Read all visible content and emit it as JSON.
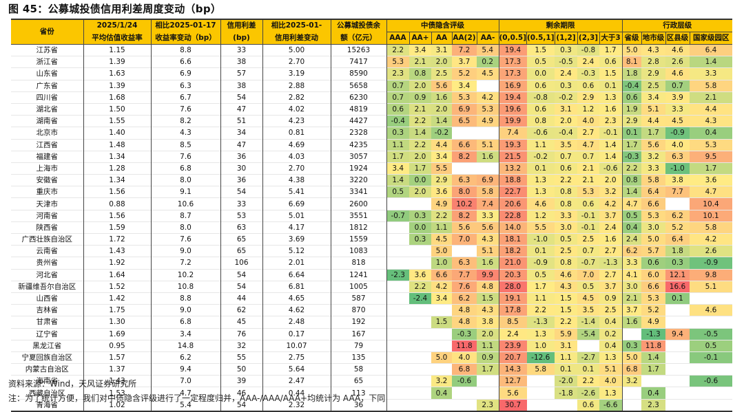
{
  "title": "图 45：公募城投债信用利差周度变动（bp）",
  "headers": {
    "province": "省份",
    "yield": [
      "2025/1/24",
      "平均估值收益率"
    ],
    "yield_change": [
      "相比2025-01-17",
      "收益率变动（bp）"
    ],
    "spread": [
      "信用利差",
      "(bp)"
    ],
    "spread_change": [
      "相比2025-01-",
      "信用利差变动"
    ],
    "balance": [
      "公募城投债余",
      "额（亿元）"
    ],
    "group_rating": "中债隐含评级",
    "group_term": "剩余期限",
    "group_admin": "行政层级",
    "rating_cols": [
      "AAA",
      "AA+",
      "AA",
      "AA(2)",
      "AA-"
    ],
    "term_cols": [
      "(0,0.5]",
      "(0.5,1]",
      "(1,2]",
      "(2,3]",
      "大于3"
    ],
    "admin_cols": [
      "省级",
      "地市级",
      "区县级",
      "国家级园区"
    ]
  },
  "rows": [
    {
      "p": "江苏省",
      "y": "1.15",
      "yc": "8.8",
      "s": "33",
      "sc": "5.00",
      "b": "15263",
      "r": [
        "2.2",
        "3.4",
        "3.1",
        "7.2",
        "5.4"
      ],
      "t": [
        "19.4",
        "1.5",
        "0.3",
        "-0.8",
        "1.7"
      ],
      "a": [
        "5.0",
        "4.3",
        "4.6",
        "6.4"
      ]
    },
    {
      "p": "浙江省",
      "y": "1.39",
      "yc": "6.6",
      "s": "38",
      "sc": "2.70",
      "b": "7417",
      "r": [
        "5.3",
        "2.1",
        "2.0",
        "3.7",
        "0.2"
      ],
      "t": [
        "17.3",
        "0.5",
        "-0.5",
        "2.4",
        "0.6"
      ],
      "a": [
        "8.1",
        "2.8",
        "2.6",
        "1.4"
      ]
    },
    {
      "p": "山东省",
      "y": "1.63",
      "yc": "6.9",
      "s": "57",
      "sc": "3.19",
      "b": "8590",
      "r": [
        "2.3",
        "0.8",
        "2.5",
        "5.2",
        "4.5"
      ],
      "t": [
        "17.3",
        "0.0",
        "2.4",
        "-0.3",
        "1.5"
      ],
      "a": [
        "1.8",
        "2.9",
        "4.6",
        "3.3"
      ]
    },
    {
      "p": "广东省",
      "y": "1.39",
      "yc": "6.3",
      "s": "38",
      "sc": "2.88",
      "b": "5658",
      "r": [
        "0.7",
        "2.0",
        "5.6",
        "3.4",
        ""
      ],
      "t": [
        "16.9",
        "0.6",
        "0.3",
        "0.6",
        "0.1"
      ],
      "a": [
        "-0.4",
        "2.5",
        "0.7",
        "5.8"
      ]
    },
    {
      "p": "四川省",
      "y": "1.68",
      "yc": "6.7",
      "s": "54",
      "sc": "2.82",
      "b": "6230",
      "r": [
        "0.7",
        "0.9",
        "1.6",
        "5.3",
        "4.2"
      ],
      "t": [
        "19.4",
        "-0.8",
        "-0.2",
        "2.9",
        "1.3"
      ],
      "a": [
        "0.6",
        "3.4",
        "3.9",
        "2.1"
      ]
    },
    {
      "p": "湖北省",
      "y": "1.50",
      "yc": "7.6",
      "s": "47",
      "sc": "4.02",
      "b": "4819",
      "r": [
        "0.6",
        "2.1",
        "2.0",
        "6.9",
        "5.3"
      ],
      "t": [
        "19.6",
        "0.6",
        "3.1",
        "1.2",
        "1.6"
      ],
      "a": [
        "1.9",
        "5.1",
        "3.3",
        "4.4"
      ]
    },
    {
      "p": "湖南省",
      "y": "1.55",
      "yc": "8.2",
      "s": "51",
      "sc": "4.23",
      "b": "4427",
      "r": [
        "-0.4",
        "2.2",
        "1.4",
        "6.5",
        "4.9"
      ],
      "t": [
        "19.9",
        "0.8",
        "2.0",
        "4.0",
        "2.3"
      ],
      "a": [
        "2.9",
        "4.4",
        "4.5",
        "4.3"
      ]
    },
    {
      "p": "北京市",
      "y": "1.40",
      "yc": "4.3",
      "s": "34",
      "sc": "0.81",
      "b": "2328",
      "r": [
        "0.3",
        "1.4",
        "-0.2",
        "",
        ""
      ],
      "t": [
        "7.4",
        "-0.6",
        "-0.4",
        "2.7",
        "-0.1"
      ],
      "a": [
        "0.1",
        "1.7",
        "-0.9",
        "0.4"
      ]
    },
    {
      "p": "江西省",
      "y": "1.48",
      "yc": "8.5",
      "s": "47",
      "sc": "4.69",
      "b": "4235",
      "r": [
        "1.1",
        "2.2",
        "4.4",
        "6.6",
        "5.1"
      ],
      "t": [
        "19.3",
        "1.1",
        "3.5",
        "4.7",
        "1.4"
      ],
      "a": [
        "1.7",
        "5.6",
        "4.0",
        "5.3"
      ]
    },
    {
      "p": "福建省",
      "y": "1.34",
      "yc": "7.6",
      "s": "36",
      "sc": "4.03",
      "b": "3057",
      "r": [
        "1.7",
        "2.0",
        "3.4",
        "8.2",
        "1.6"
      ],
      "t": [
        "21.5",
        "-0.2",
        "0.7",
        "0.7",
        "1.4"
      ],
      "a": [
        "-0.3",
        "3.2",
        "6.3",
        "9.5"
      ]
    },
    {
      "p": "上海市",
      "y": "1.28",
      "yc": "6.8",
      "s": "30",
      "sc": "2.70",
      "b": "1924",
      "r": [
        "3.4",
        "1.7",
        "5.5",
        "",
        ""
      ],
      "t": [
        "13.2",
        "0.1",
        "0.6",
        "2.1",
        "-0.6"
      ],
      "a": [
        "2.2",
        "3.3",
        "-1.0",
        "1.7"
      ]
    },
    {
      "p": "安徽省",
      "y": "1.34",
      "yc": "8.0",
      "s": "36",
      "sc": "4.38",
      "b": "3220",
      "r": [
        "1.4",
        "0.0",
        "2.9",
        "6.3",
        "6.9"
      ],
      "t": [
        "18.8",
        "1.3",
        "2.2",
        "2.1",
        "2.0"
      ],
      "a": [
        "0.8",
        "5.8",
        "3.8",
        "3.6"
      ]
    },
    {
      "p": "重庆市",
      "y": "1.56",
      "yc": "9.1",
      "s": "54",
      "sc": "5.41",
      "b": "3341",
      "r": [
        "0.5",
        "2.0",
        "3.6",
        "8.0",
        "5.8"
      ],
      "t": [
        "22.7",
        "1.3",
        "0.8",
        "5.3",
        "3.2"
      ],
      "a": [
        "1.4",
        "6.4",
        "7.7",
        "4.7"
      ]
    },
    {
      "p": "天津市",
      "y": "0.88",
      "yc": "10.6",
      "s": "33",
      "sc": "6.69",
      "b": "2600",
      "r": [
        "",
        "",
        "4.9",
        "10.2",
        "7.4"
      ],
      "t": [
        "20.6",
        "4.6",
        "0.8",
        "0.6",
        "4.2"
      ],
      "a": [
        "4.7",
        "6.6",
        "",
        "10.4"
      ]
    },
    {
      "p": "河南省",
      "y": "1.56",
      "yc": "8.7",
      "s": "53",
      "sc": "5.01",
      "b": "3551",
      "r": [
        "-0.7",
        "0.3",
        "2.2",
        "8.2",
        "3.3"
      ],
      "t": [
        "22.8",
        "1.2",
        "3.3",
        "-0.1",
        "3.7"
      ],
      "a": [
        "0.5",
        "5.3",
        "6.2",
        "10.1"
      ]
    },
    {
      "p": "陕西省",
      "y": "1.59",
      "yc": "8.0",
      "s": "63",
      "sc": "4.17",
      "b": "1812",
      "r": [
        "",
        "0.0",
        "1.1",
        "5.6",
        "5.6"
      ],
      "t": [
        "14.0",
        "5.5",
        "3.0",
        "-0.1",
        "2.4"
      ],
      "a": [
        "0.4",
        "3.0",
        "5.2",
        "5.8"
      ]
    },
    {
      "p": "广西壮族自治区",
      "y": "1.72",
      "yc": "7.6",
      "s": "65",
      "sc": "3.69",
      "b": "1559",
      "r": [
        "",
        "0.3",
        "4.5",
        "7.0",
        "4.3"
      ],
      "t": [
        "18.1",
        "-1.0",
        "0.5",
        "2.5",
        "1.6"
      ],
      "a": [
        "2.4",
        "5.0",
        "6.4",
        "4.2"
      ]
    },
    {
      "p": "云南省",
      "y": "1.43",
      "yc": "9.0",
      "s": "65",
      "sc": "5.12",
      "b": "1083",
      "r": [
        "",
        "",
        "5.0",
        "",
        "5.1"
      ],
      "t": [
        "18.2",
        "0.1",
        "2.5",
        "0.7",
        "2.7"
      ],
      "a": [
        "6.2",
        "5.7",
        "1.8",
        "2.6"
      ]
    },
    {
      "p": "贵州省",
      "y": "1.92",
      "yc": "7.2",
      "s": "106",
      "sc": "2.01",
      "b": "818",
      "r": [
        "",
        "",
        "1.0",
        "6.3",
        "1.6"
      ],
      "t": [
        "21.0",
        "-0.9",
        "0.8",
        "-0.7",
        "-1.3"
      ],
      "a": [
        "3.3",
        "0.6",
        "0.3",
        "-0.9"
      ]
    },
    {
      "p": "河北省",
      "y": "1.64",
      "yc": "10.2",
      "s": "54",
      "sc": "6.64",
      "b": "1241",
      "r": [
        "-2.3",
        "3.6",
        "6.6",
        "7.7",
        "9.9"
      ],
      "t": [
        "20.3",
        "0.5",
        "4.6",
        "7.0",
        "2.7"
      ],
      "a": [
        "4.1",
        "6.0",
        "12.1",
        "9.8"
      ]
    },
    {
      "p": "新疆维吾尔自治区",
      "y": "1.52",
      "yc": "10.8",
      "s": "54",
      "sc": "6.81",
      "b": "1005",
      "r": [
        "",
        "2.2",
        "4.2",
        "7.6",
        "4.8"
      ],
      "t": [
        "28.0",
        "1.7",
        "4.3",
        "0.5",
        "3.7"
      ],
      "a": [
        "3.0",
        "6.6",
        "16.6",
        "5.1"
      ]
    },
    {
      "p": "山西省",
      "y": "1.42",
      "yc": "8.8",
      "s": "44",
      "sc": "4.65",
      "b": "587",
      "r": [
        "",
        "-2.4",
        "3.4",
        "6.2",
        "1.5"
      ],
      "t": [
        "19.1",
        "1.1",
        "1.5",
        "4.5",
        "0.9"
      ],
      "a": [
        "2.1",
        "5.3",
        "0.1",
        ""
      ]
    },
    {
      "p": "吉林省",
      "y": "1.75",
      "yc": "9.0",
      "s": "62",
      "sc": "4.62",
      "b": "870",
      "r": [
        "",
        "",
        "",
        "4.8",
        "4.3"
      ],
      "t": [
        "17.8",
        "2.2",
        "1.5",
        "3.5",
        "2.5"
      ],
      "a": [
        "3.7",
        "5.2",
        "",
        "4.6"
      ]
    },
    {
      "p": "甘肃省",
      "y": "1.30",
      "yc": "6.8",
      "s": "45",
      "sc": "2.48",
      "b": "192",
      "r": [
        "",
        "",
        "1.5",
        "4.8",
        "3.8"
      ],
      "t": [
        "8.5",
        "-1.3",
        "2.2",
        "-1.4",
        "0.4"
      ],
      "a": [
        "1.6",
        "4.9",
        "",
        ""
      ]
    },
    {
      "p": "辽宁省",
      "y": "1.69",
      "yc": "3.4",
      "s": "76",
      "sc": "0.17",
      "b": "167",
      "r": [
        "",
        "",
        "",
        "-0.3",
        "2.0"
      ],
      "t": [
        "2.4",
        "1.3",
        "5.9",
        "-5.4",
        "0.2"
      ],
      "a": [
        "",
        "-1.3",
        "9.4",
        "-0.5"
      ]
    },
    {
      "p": "黑龙江省",
      "y": "0.95",
      "yc": "14.8",
      "s": "32",
      "sc": "10.07",
      "b": "79",
      "r": [
        "",
        "",
        "",
        "11.8",
        "1.1"
      ],
      "t": [
        "23.9",
        "1.0",
        "3.1",
        "",
        "0.4"
      ],
      "a": [
        "0.3",
        "11.8",
        "",
        "0.5"
      ]
    },
    {
      "p": "宁夏回族自治区",
      "y": "1.57",
      "yc": "6.2",
      "s": "55",
      "sc": "2.75",
      "b": "135",
      "r": [
        "",
        "",
        "5.0",
        "4.0",
        "0.9"
      ],
      "t": [
        "20.7",
        "-12.6",
        "1.1",
        "-2.7",
        "1.3"
      ],
      "a": [
        "5.0",
        "1.4",
        "",
        "-0.1"
      ]
    },
    {
      "p": "内蒙古自治区",
      "y": "1.37",
      "yc": "9.4",
      "s": "50",
      "sc": "5.64",
      "b": "58",
      "r": [
        "",
        "",
        "",
        "6.8",
        "1.7"
      ],
      "t": [
        "14.3",
        "5.8",
        "0.1",
        "0.1",
        "5.1"
      ],
      "a": [
        "6.8",
        "1.7",
        "",
        ""
      ]
    },
    {
      "p": "海南省",
      "y": "1.43",
      "yc": "7.0",
      "s": "39",
      "sc": "2.47",
      "b": "65",
      "r": [
        "",
        "",
        "3.2",
        "-0.6",
        ""
      ],
      "t": [
        "12.7",
        "",
        "-2.0",
        "2.2",
        "4.0"
      ],
      "a": [
        "3.2",
        "",
        "",
        "-0.6"
      ]
    },
    {
      "p": "西藏自治区",
      "y": "1.53",
      "yc": "4.7",
      "s": "46",
      "sc": "0.44",
      "b": "113",
      "r": [
        "",
        "",
        "0.4",
        "",
        ""
      ],
      "t": [
        "5.6",
        "",
        "-1.8",
        "-2.6",
        "1.3"
      ],
      "a": [
        "",
        "0.4",
        "",
        ""
      ]
    },
    {
      "p": "青海省",
      "y": "1.02",
      "yc": "5.4",
      "s": "54",
      "sc": "2.32",
      "b": "36",
      "r": [
        "",
        "",
        "",
        "",
        "2.3"
      ],
      "t": [
        "30.7",
        "",
        "",
        "0.6",
        "-6.6"
      ],
      "a": [
        "",
        "2.3",
        "",
        ""
      ]
    }
  ],
  "source": "资料来源：Wind，天风证券研究所",
  "note": "注：为了统计方便，我们对中债隐含评级进行了一定程度归并，AAA-/AAA/AAA+均统计为 AAA，下同",
  "colors": {
    "header": "#fbc600",
    "low": "#63be7b",
    "mid": "#ffeb84",
    "high": "#f8696b",
    "red_text": "#c00000"
  }
}
